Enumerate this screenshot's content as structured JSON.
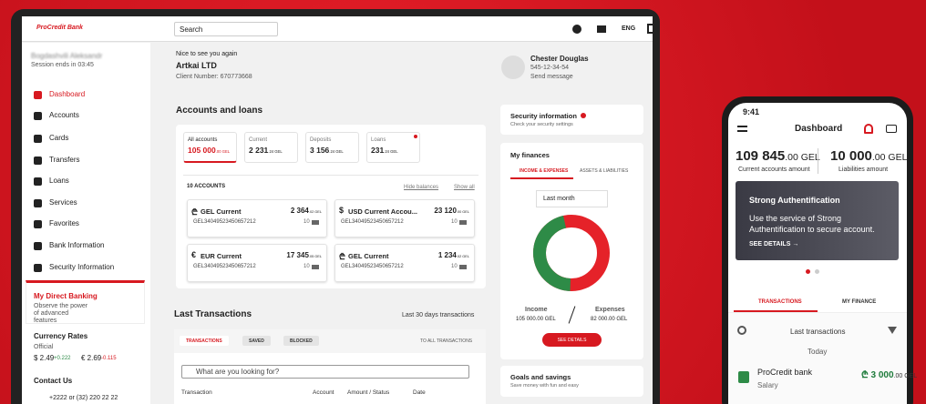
{
  "logo": "ProCredit Bank",
  "header": {
    "search": "Search",
    "language": "ENG"
  },
  "sidebar": {
    "user": "Bogdashvili Aleksandr",
    "session": "Session ends in 03:45",
    "menu": [
      "Dashboard",
      "Accounts",
      "Cards",
      "Transfers",
      "Loans",
      "Services",
      "Favorites",
      "Bank Information",
      "Security Information"
    ],
    "promo": {
      "title": "My Direct Banking",
      "text": "Observe the power of advanced features"
    },
    "currency": {
      "title": "Currency Rates",
      "source": "Official",
      "rates": [
        {
          "value": "$ 2.49",
          "change": "+0.222"
        },
        {
          "value": "€ 2.69",
          "change": "-0.115"
        }
      ]
    },
    "contact": {
      "title": "Contact Us",
      "phone": "+2222 or (32) 220 22 22"
    }
  },
  "greeting": {
    "hello": "Nice to see you again",
    "company": "Artkai LTD",
    "client": "Client Number: 670773668"
  },
  "manager": {
    "name": "Chester Douglas",
    "phone": "545-12-34-54",
    "action": "Send message"
  },
  "accounts": {
    "title": "Accounts and loans",
    "tabs": [
      {
        "label": "All accounts",
        "main": "105 000",
        "dec": ".00 GEL"
      },
      {
        "label": "Current",
        "main": "2 231",
        "dec": ".24 GEL"
      },
      {
        "label": "Deposits",
        "main": "3 156",
        "dec": ".24 GEL"
      },
      {
        "label": "Loans",
        "main": "231",
        "dec": ".24 GEL"
      }
    ],
    "count": "10 ACCOUNTS",
    "hide": "Hide balances",
    "show": "Show all",
    "items": [
      {
        "symbol": "₾",
        "name": "GEL Current",
        "main": "2 364",
        "dec": ".02 GEL",
        "iban": "GEL34049523450657212",
        "cards": "10"
      },
      {
        "symbol": "$",
        "name": "USD Current Accou...",
        "main": "23 120",
        "dec": ".00 GEL",
        "iban": "GEL34049523450657212",
        "cards": "10"
      },
      {
        "symbol": "€",
        "name": "EUR Current",
        "main": "17 345",
        "dec": ".05 GEL",
        "iban": "GEL34049523450657212",
        "cards": "10"
      },
      {
        "symbol": "₾",
        "name": "GEL Current",
        "main": "1 234",
        "dec": ".02 GEL",
        "iban": "GEL34049523450657212",
        "cards": "10"
      }
    ]
  },
  "transactions": {
    "title": "Last Transactions",
    "period": "Last 30 days transactions",
    "tabs": [
      "TRANSACTIONS",
      "SAVED",
      "BLOCKED"
    ],
    "all": "TO ALL TRANSACTIONS",
    "search": "What are you looking for?",
    "columns": [
      "Transaction",
      "Account",
      "Amount / Status",
      "Date"
    ]
  },
  "security": {
    "title": "Security information",
    "text": "Check your security settings"
  },
  "finances": {
    "title": "My finances",
    "tabs": [
      "INCOME & EXPENSES",
      "ASSETS & LIABILITIES"
    ],
    "period": "Last month",
    "income": {
      "label": "Income",
      "amount": "105 000.00 GEL"
    },
    "expenses": {
      "label": "Expenses",
      "amount": "82 000.00 GEL"
    },
    "button": "SEE DETAILS"
  },
  "goals": {
    "title": "Goals and savings",
    "text": "Save money with fun and easy"
  },
  "phone": {
    "time": "9:41",
    "title": "Dashboard",
    "totals": [
      {
        "main": "109 845",
        "dec": ".00 GEL",
        "label": "Current accounts amount"
      },
      {
        "main": "10 000",
        "dec": ".00 GEL",
        "label": "Liabilities amount"
      }
    ],
    "banner": {
      "title": "Strong Authentification",
      "text": "Use the service of Strong Authentification to secure account.",
      "link": "SEE DETAILS →"
    },
    "tabs": [
      "TRANSACTIONS",
      "MY FINANCE"
    ],
    "search": "Last transactions",
    "day": "Today",
    "item": {
      "name": "ProCredit bank",
      "note": "Salary",
      "main": "₾ 3 000",
      "dec": ".00 GEL"
    }
  }
}
